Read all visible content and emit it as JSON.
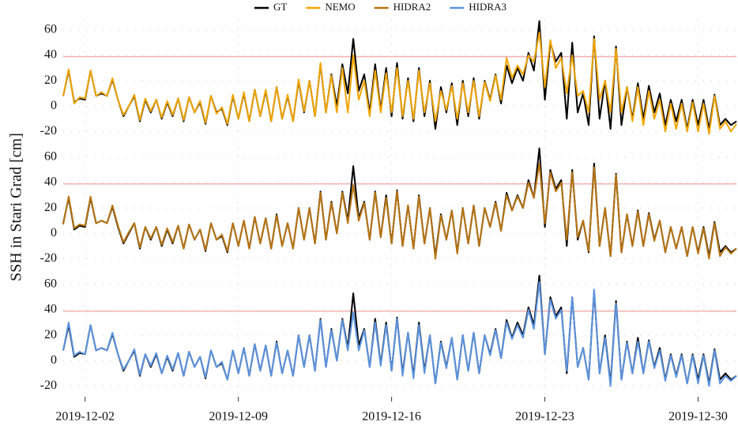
{
  "chart_data": {
    "type": "line",
    "y_label": "SSH in Stari Grad [cm]",
    "panels": 3,
    "hline": 39,
    "hline_color": "#f4b0b0",
    "grid": true,
    "legend": "top",
    "xlim": [
      "2019-12-01T00",
      "2019-12-31T18"
    ],
    "xticks": [
      "2019-12-02",
      "2019-12-09",
      "2019-12-16",
      "2019-12-23",
      "2019-12-30"
    ],
    "ylim": [
      -26,
      68
    ],
    "yticks": [
      -20,
      0,
      20,
      40,
      60
    ],
    "x": [
      "2019-12-01T00",
      "2019-12-01T06",
      "2019-12-01T12",
      "2019-12-01T18",
      "2019-12-02T00",
      "2019-12-02T06",
      "2019-12-02T12",
      "2019-12-02T18",
      "2019-12-03T00",
      "2019-12-03T06",
      "2019-12-03T12",
      "2019-12-03T18",
      "2019-12-04T00",
      "2019-12-04T06",
      "2019-12-04T12",
      "2019-12-04T18",
      "2019-12-05T00",
      "2019-12-05T06",
      "2019-12-05T12",
      "2019-12-05T18",
      "2019-12-06T00",
      "2019-12-06T06",
      "2019-12-06T12",
      "2019-12-06T18",
      "2019-12-07T00",
      "2019-12-07T06",
      "2019-12-07T12",
      "2019-12-07T18",
      "2019-12-08T00",
      "2019-12-08T06",
      "2019-12-08T12",
      "2019-12-08T18",
      "2019-12-09T00",
      "2019-12-09T06",
      "2019-12-09T12",
      "2019-12-09T18",
      "2019-12-10T00",
      "2019-12-10T06",
      "2019-12-10T12",
      "2019-12-10T18",
      "2019-12-11T00",
      "2019-12-11T06",
      "2019-12-11T12",
      "2019-12-11T18",
      "2019-12-12T00",
      "2019-12-12T06",
      "2019-12-12T12",
      "2019-12-12T18",
      "2019-12-13T00",
      "2019-12-13T06",
      "2019-12-13T12",
      "2019-12-13T18",
      "2019-12-14T00",
      "2019-12-14T06",
      "2019-12-14T12",
      "2019-12-14T18",
      "2019-12-15T00",
      "2019-12-15T06",
      "2019-12-15T12",
      "2019-12-15T18",
      "2019-12-16T00",
      "2019-12-16T06",
      "2019-12-16T12",
      "2019-12-16T18",
      "2019-12-17T00",
      "2019-12-17T06",
      "2019-12-17T12",
      "2019-12-17T18",
      "2019-12-18T00",
      "2019-12-18T06",
      "2019-12-18T12",
      "2019-12-18T18",
      "2019-12-19T00",
      "2019-12-19T06",
      "2019-12-19T12",
      "2019-12-19T18",
      "2019-12-20T00",
      "2019-12-20T06",
      "2019-12-20T12",
      "2019-12-20T18",
      "2019-12-21T00",
      "2019-12-21T06",
      "2019-12-21T12",
      "2019-12-21T18",
      "2019-12-22T00",
      "2019-12-22T06",
      "2019-12-22T12",
      "2019-12-22T18",
      "2019-12-23T00",
      "2019-12-23T06",
      "2019-12-23T12",
      "2019-12-23T18",
      "2019-12-24T00",
      "2019-12-24T06",
      "2019-12-24T12",
      "2019-12-24T18",
      "2019-12-25T00",
      "2019-12-25T06",
      "2019-12-25T12",
      "2019-12-25T18",
      "2019-12-26T00",
      "2019-12-26T06",
      "2019-12-26T12",
      "2019-12-26T18",
      "2019-12-27T00",
      "2019-12-27T06",
      "2019-12-27T12",
      "2019-12-27T18",
      "2019-12-28T00",
      "2019-12-28T06",
      "2019-12-28T12",
      "2019-12-28T18",
      "2019-12-29T00",
      "2019-12-29T06",
      "2019-12-29T12",
      "2019-12-29T18",
      "2019-12-30T00",
      "2019-12-30T06",
      "2019-12-30T12",
      "2019-12-30T18",
      "2019-12-31T00",
      "2019-12-31T06",
      "2019-12-31T12",
      "2019-12-31T18"
    ],
    "series": [
      {
        "name": "GT",
        "color": "#000000",
        "panels": [
          0,
          1,
          2
        ],
        "values": [
          8,
          28,
          3,
          6,
          5,
          28,
          8,
          10,
          8,
          21,
          5,
          -8,
          0,
          8,
          -12,
          5,
          -5,
          5,
          -10,
          3,
          -8,
          6,
          -12,
          7,
          -5,
          3,
          -14,
          8,
          -5,
          -2,
          -15,
          8,
          -10,
          10,
          -12,
          13,
          -8,
          12,
          -12,
          15,
          -10,
          8,
          -12,
          20,
          -5,
          20,
          -8,
          33,
          -5,
          25,
          0,
          33,
          10,
          53,
          12,
          25,
          -5,
          33,
          -3,
          30,
          -8,
          34,
          -10,
          22,
          -12,
          30,
          -8,
          20,
          -18,
          15,
          -5,
          18,
          -15,
          20,
          -8,
          22,
          -10,
          20,
          5,
          25,
          2,
          32,
          18,
          30,
          20,
          42,
          28,
          67,
          5,
          50,
          35,
          42,
          -10,
          50,
          -5,
          10,
          -15,
          55,
          -10,
          20,
          -18,
          47,
          -15,
          15,
          -10,
          18,
          -10,
          16,
          -5,
          10,
          -15,
          5,
          -12,
          5,
          -18,
          5,
          -15,
          5,
          -18,
          9,
          -15,
          -10,
          -15,
          -12
        ]
      },
      {
        "name": "NEMO",
        "color": "#f2a500",
        "panels": [
          0
        ],
        "values": [
          8,
          29,
          2,
          7,
          6,
          28,
          8,
          11,
          8,
          22,
          5,
          -7,
          0,
          9,
          -11,
          6,
          -4,
          5,
          -9,
          4,
          -7,
          6,
          -11,
          7,
          -5,
          4,
          -13,
          8,
          -6,
          -1,
          -14,
          9,
          -10,
          11,
          -12,
          13,
          -8,
          13,
          -12,
          15,
          -10,
          9,
          -12,
          21,
          -4,
          20,
          -8,
          34,
          -5,
          24,
          -5,
          30,
          -5,
          40,
          5,
          20,
          -8,
          28,
          -5,
          26,
          -5,
          30,
          -8,
          20,
          -10,
          28,
          -5,
          18,
          -12,
          12,
          -3,
          16,
          -10,
          18,
          -5,
          20,
          -8,
          19,
          4,
          24,
          5,
          38,
          22,
          32,
          25,
          40,
          35,
          58,
          15,
          52,
          30,
          38,
          10,
          40,
          8,
          12,
          -5,
          53,
          5,
          20,
          -5,
          45,
          -5,
          15,
          -12,
          15,
          -15,
          12,
          -10,
          5,
          -20,
          2,
          -18,
          2,
          -20,
          3,
          -20,
          2,
          -22,
          8,
          -18,
          -12,
          -20,
          -14
        ]
      },
      {
        "name": "HIDRA2",
        "color": "#b87410",
        "panels": [
          1
        ],
        "values": [
          7,
          29,
          4,
          7,
          6,
          29,
          8,
          10,
          8,
          22,
          6,
          -7,
          1,
          8,
          -11,
          5,
          -4,
          5,
          -9,
          4,
          -7,
          6,
          -12,
          7,
          -5,
          3,
          -13,
          8,
          -5,
          -1,
          -14,
          8,
          -10,
          10,
          -12,
          13,
          -8,
          12,
          -12,
          14,
          -10,
          8,
          -12,
          20,
          -5,
          20,
          -8,
          32,
          -5,
          24,
          0,
          32,
          8,
          38,
          10,
          24,
          -5,
          32,
          -3,
          28,
          -8,
          33,
          -10,
          22,
          -12,
          29,
          -8,
          20,
          -20,
          14,
          -5,
          18,
          -16,
          20,
          -8,
          22,
          -10,
          20,
          5,
          24,
          2,
          30,
          18,
          29,
          20,
          40,
          28,
          55,
          8,
          48,
          33,
          40,
          -5,
          48,
          -3,
          10,
          -14,
          52,
          -10,
          20,
          -18,
          46,
          -15,
          15,
          -10,
          17,
          -10,
          15,
          -6,
          10,
          -15,
          5,
          -12,
          5,
          -18,
          5,
          -16,
          4,
          -20,
          8,
          -18,
          -11,
          -16,
          -12
        ]
      },
      {
        "name": "HIDRA3",
        "color": "#5b93e0",
        "panels": [
          2
        ],
        "values": [
          8,
          30,
          4,
          7,
          5,
          28,
          8,
          10,
          8,
          22,
          5,
          -7,
          0,
          9,
          -11,
          5,
          -4,
          6,
          -10,
          4,
          -7,
          6,
          -12,
          7,
          -5,
          3,
          -13,
          8,
          -5,
          -1,
          -15,
          8,
          -10,
          10,
          -12,
          13,
          -8,
          12,
          -12,
          14,
          -10,
          8,
          -12,
          20,
          -5,
          20,
          -8,
          32,
          -5,
          24,
          0,
          32,
          8,
          38,
          8,
          24,
          -5,
          30,
          -4,
          28,
          -8,
          33,
          -12,
          22,
          -14,
          28,
          -10,
          20,
          -18,
          14,
          -6,
          18,
          -15,
          20,
          -8,
          22,
          -10,
          20,
          4,
          24,
          2,
          30,
          17,
          28,
          18,
          40,
          25,
          62,
          5,
          48,
          33,
          40,
          -8,
          50,
          -5,
          10,
          -15,
          56,
          -10,
          18,
          -20,
          45,
          -15,
          14,
          -10,
          15,
          -10,
          15,
          -6,
          8,
          -16,
          4,
          -13,
          4,
          -18,
          4,
          -18,
          4,
          -20,
          8,
          -18,
          -12,
          -16,
          -12
        ]
      }
    ]
  }
}
